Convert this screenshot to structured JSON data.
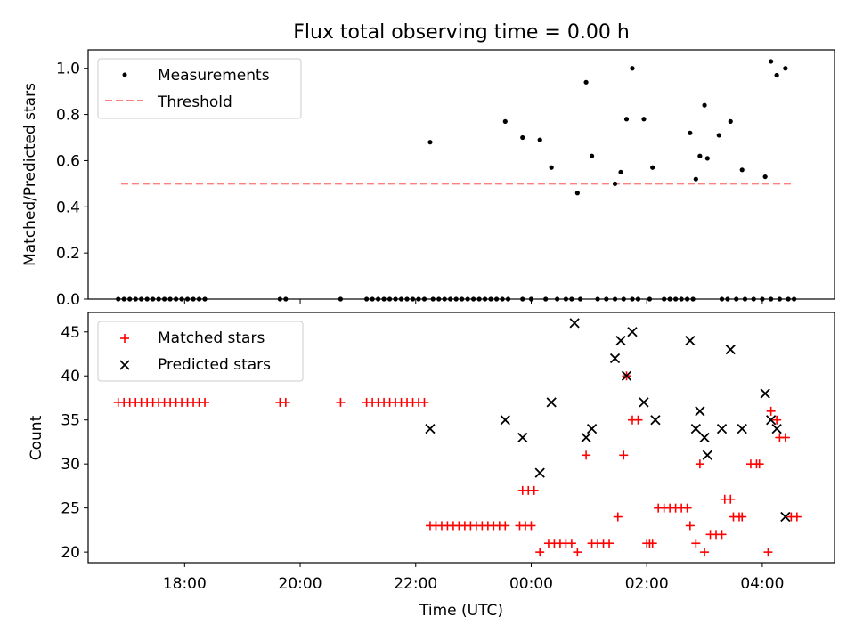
{
  "chart_data": {
    "title": "Flux total observing time = 0.00 h",
    "xlabel": "Time (UTC)",
    "xlim": [
      16.33,
      29.25
    ],
    "xticks": [
      {
        "label": "18:00",
        "value": 18
      },
      {
        "label": "20:00",
        "value": 20
      },
      {
        "label": "22:00",
        "value": 22
      },
      {
        "label": "00:00",
        "value": 24
      },
      {
        "label": "02:00",
        "value": 26
      },
      {
        "label": "04:00",
        "value": 28
      }
    ],
    "panels": [
      {
        "type": "scatter",
        "ylabel": "Matched/Predicted stars",
        "ylim": [
          0,
          1.08
        ],
        "yticks": [
          "0.0",
          "0.2",
          "0.4",
          "0.6",
          "0.8",
          "1.0"
        ],
        "legend": {
          "position": "top-left",
          "entries": [
            "Measurements",
            "Threshold"
          ]
        },
        "threshold": {
          "value": 0.5,
          "x_start": 16.9,
          "x_end": 28.5,
          "color": "#ff7f7f"
        },
        "series": [
          {
            "name": "Measurements",
            "color": "#000000",
            "x": [
              16.85,
              16.95,
              17.05,
              17.15,
              17.25,
              17.35,
              17.45,
              17.55,
              17.65,
              17.75,
              17.85,
              17.95,
              18.05,
              18.15,
              18.25,
              18.35,
              19.65,
              19.75,
              20.7,
              21.15,
              21.25,
              21.35,
              21.45,
              21.55,
              21.65,
              21.75,
              21.85,
              21.95,
              22.05,
              22.15,
              22.3,
              22.4,
              22.5,
              22.6,
              22.7,
              22.8,
              22.9,
              23.0,
              23.1,
              23.2,
              23.3,
              23.4,
              23.5,
              23.6,
              23.85,
              24.0,
              24.25,
              24.45,
              24.6,
              24.7,
              24.85,
              25.15,
              25.3,
              25.45,
              25.6,
              25.75,
              25.85,
              26.05,
              26.3,
              26.4,
              26.5,
              26.6,
              26.7,
              26.8,
              27.3,
              27.4,
              27.55,
              27.7,
              27.85,
              28.0,
              28.15,
              28.3,
              28.45,
              28.55,
              22.25,
              23.55,
              23.85,
              24.15,
              24.35,
              24.8,
              24.95,
              25.05,
              25.45,
              25.55,
              25.65,
              25.75,
              25.95,
              26.1,
              26.75,
              26.85,
              26.92,
              27.0,
              27.05,
              27.25,
              27.45,
              27.65,
              28.05,
              28.15,
              28.25,
              28.4
            ],
            "y": [
              0,
              0,
              0,
              0,
              0,
              0,
              0,
              0,
              0,
              0,
              0,
              0,
              0,
              0,
              0,
              0,
              0,
              0,
              0,
              0,
              0,
              0,
              0,
              0,
              0,
              0,
              0,
              0,
              0,
              0,
              0,
              0,
              0,
              0,
              0,
              0,
              0,
              0,
              0,
              0,
              0,
              0,
              0,
              0,
              0,
              0,
              0,
              0,
              0,
              0,
              0,
              0,
              0,
              0,
              0,
              0,
              0,
              0,
              0,
              0,
              0,
              0,
              0,
              0,
              0,
              0,
              0,
              0,
              0,
              0,
              0,
              0,
              0,
              0,
              0.68,
              0.77,
              0.7,
              0.69,
              0.57,
              0.46,
              0.94,
              0.62,
              0.5,
              0.55,
              0.78,
              1.0,
              0.78,
              0.57,
              0.72,
              0.52,
              0.62,
              0.84,
              0.61,
              0.71,
              0.77,
              0.56,
              0.53,
              1.03,
              0.97,
              1.0
            ]
          }
        ]
      },
      {
        "type": "scatter",
        "ylabel": "Count",
        "ylim": [
          18.8,
          47.2
        ],
        "yticks": [
          "20",
          "25",
          "30",
          "35",
          "40",
          "45"
        ],
        "legend": {
          "position": "top-left",
          "entries": [
            "Matched stars",
            "Predicted stars"
          ]
        },
        "series": [
          {
            "name": "Matched stars",
            "color": "#ff0000",
            "marker": "+",
            "x": [
              16.85,
              16.95,
              17.05,
              17.15,
              17.25,
              17.35,
              17.45,
              17.55,
              17.65,
              17.75,
              17.85,
              17.95,
              18.05,
              18.15,
              18.25,
              18.35,
              19.65,
              19.75,
              20.7,
              21.15,
              21.25,
              21.35,
              21.45,
              21.55,
              21.65,
              21.75,
              21.85,
              21.95,
              22.05,
              22.15,
              22.25,
              22.35,
              22.45,
              22.55,
              22.65,
              22.75,
              22.85,
              22.95,
              23.05,
              23.15,
              23.25,
              23.35,
              23.45,
              23.55,
              23.85,
              23.95,
              24.05,
              23.8,
              23.9,
              24.0,
              24.15,
              24.3,
              24.4,
              24.5,
              24.6,
              24.7,
              24.8,
              24.95,
              25.05,
              25.15,
              25.25,
              25.35,
              25.5,
              25.6,
              25.65,
              25.75,
              25.85,
              26.0,
              26.05,
              26.1,
              26.2,
              26.3,
              26.4,
              26.5,
              26.6,
              26.7,
              26.75,
              26.85,
              26.92,
              27.0,
              27.1,
              27.2,
              27.3,
              27.35,
              27.45,
              27.5,
              27.6,
              27.65,
              27.8,
              27.9,
              27.95,
              28.1,
              28.15,
              28.25,
              28.3,
              28.4,
              28.5,
              28.6
            ],
            "y": [
              37,
              37,
              37,
              37,
              37,
              37,
              37,
              37,
              37,
              37,
              37,
              37,
              37,
              37,
              37,
              37,
              37,
              37,
              37,
              37,
              37,
              37,
              37,
              37,
              37,
              37,
              37,
              37,
              37,
              37,
              23,
              23,
              23,
              23,
              23,
              23,
              23,
              23,
              23,
              23,
              23,
              23,
              23,
              23,
              27,
              27,
              27,
              23,
              23,
              23,
              20,
              21,
              21,
              21,
              21,
              21,
              20,
              31,
              21,
              21,
              21,
              21,
              24,
              31,
              40,
              35,
              35,
              21,
              21,
              21,
              25,
              25,
              25,
              25,
              25,
              25,
              23,
              21,
              30,
              20,
              22,
              22,
              22,
              26,
              26,
              24,
              24,
              24,
              30,
              30,
              30,
              20,
              36,
              35,
              33,
              33,
              24,
              24
            ]
          },
          {
            "name": "Predicted stars",
            "color": "#000000",
            "marker": "x",
            "x": [
              22.25,
              23.55,
              23.85,
              24.15,
              24.35,
              24.75,
              24.95,
              25.05,
              25.45,
              25.55,
              25.65,
              25.75,
              25.95,
              26.15,
              26.75,
              26.85,
              26.92,
              27.0,
              27.05,
              27.3,
              27.45,
              27.65,
              28.05,
              28.15,
              28.25,
              28.4
            ],
            "y": [
              34,
              35,
              33,
              29,
              37,
              46,
              33,
              34,
              42,
              44,
              40,
              45,
              37,
              35,
              44,
              34,
              36,
              33,
              31,
              34,
              43,
              34,
              38,
              35,
              34,
              24
            ]
          }
        ]
      }
    ]
  }
}
